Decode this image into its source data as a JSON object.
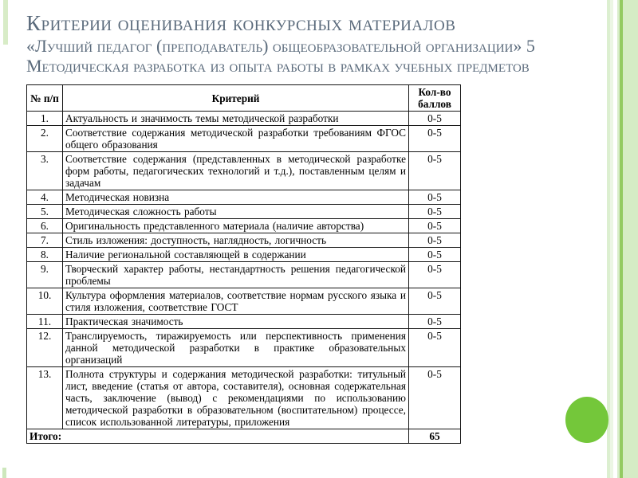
{
  "slide": {
    "title_lines": [
      "Критерии оценивания конкурсных материалов",
      "«Лучший педагог (преподаватель) общеобразовательной организации» 5",
      "Методическая разработка из опыта работы в рамках учебных предметов"
    ]
  },
  "table": {
    "headers": {
      "num": "№ п/п",
      "criterion": "Критерий",
      "points": "Кол-во баллов"
    },
    "rows": [
      {
        "num": "1.",
        "criterion": "Актуальность и значимость темы методической разработки",
        "points": "0-5"
      },
      {
        "num": "2.",
        "criterion": "Соответствие содержания методической разработки требованиям ФГОС общего образования",
        "points": "0-5"
      },
      {
        "num": "3.",
        "criterion": "Соответствие содержания (представленных в методической разработке форм работы, педагогических технологий и т.д.), поставленным целям и задачам",
        "points": "0-5"
      },
      {
        "num": "4.",
        "criterion": "Методическая новизна",
        "points": "0-5"
      },
      {
        "num": "5.",
        "criterion": "Методическая сложность работы",
        "points": "0-5"
      },
      {
        "num": "6.",
        "criterion": "Оригинальность представленного материала (наличие авторства)",
        "points": "0-5"
      },
      {
        "num": "7.",
        "criterion": "Стиль изложения: доступность, наглядность, логичность",
        "points": "0-5"
      },
      {
        "num": "8.",
        "criterion": "Наличие региональной составляющей в содержании",
        "points": "0-5"
      },
      {
        "num": "9.",
        "criterion": "Творческий характер работы, нестандартность решения педагогической проблемы",
        "points": "0-5"
      },
      {
        "num": "10.",
        "criterion": "Культура оформления материалов, соответствие нормам русского языка и стиля изложения, соответствие ГОСТ",
        "points": "0-5"
      },
      {
        "num": "11.",
        "criterion": "Практическая значимость",
        "points": "0-5"
      },
      {
        "num": "12.",
        "criterion": "Транслируемость, тиражируемость или перспективность применения данной методической разработки в практике образовательных организаций",
        "points": "0-5"
      },
      {
        "num": "13.",
        "criterion": "Полнота структуры и содержания методической разработки: титульный лист, введение (статья от автора, составителя), основная содержательная часть, заключение (вывод) с рекомендациями по использованию методической разработки в образовательном (воспитательном) процессе, список использованной литературы, приложения",
        "points": "0-5"
      }
    ],
    "total_label": "Итого:",
    "total_value": "65"
  },
  "colors": {
    "accent_green": "#74c73a",
    "pale_green": "#d8ecc7",
    "stripe_green": "#93ca62",
    "title_text": "#5b6b7c",
    "table_text": "#000000",
    "background": "#ffffff"
  }
}
